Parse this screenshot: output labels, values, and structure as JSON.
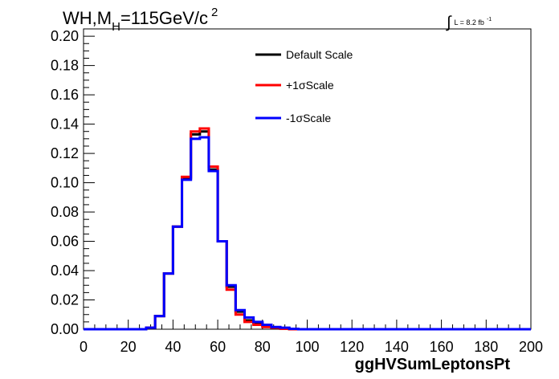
{
  "chart_data": {
    "type": "line",
    "title": {
      "main": "WH,M",
      "sub": "H",
      "rest": "=115GeV/c",
      "sup": "2"
    },
    "lumi": {
      "integral": "∫",
      "text": "L = 8.2 fb",
      "sup": "-1"
    },
    "xlabel": "ggHVSumLeptonsPt",
    "ylabel": "",
    "xlim": [
      0,
      200
    ],
    "ylim": [
      0,
      0.205
    ],
    "grid": false,
    "legend_position": "top-center",
    "xticks": [
      "0",
      "20",
      "40",
      "60",
      "80",
      "100",
      "120",
      "140",
      "160",
      "180",
      "200"
    ],
    "yticks": [
      "0.00",
      "0.02",
      "0.04",
      "0.06",
      "0.08",
      "0.10",
      "0.12",
      "0.14",
      "0.16",
      "0.18",
      "0.20"
    ],
    "bin_width": 4,
    "bin_edges_start": 0,
    "series": [
      {
        "name": "Default Scale",
        "color": "#000000",
        "values": [
          0,
          0,
          0,
          0,
          0,
          0,
          0,
          0.001,
          0.009,
          0.038,
          0.07,
          0.103,
          0.133,
          0.135,
          0.109,
          0.06,
          0.029,
          0.012,
          0.006,
          0.004,
          0.002,
          0.001,
          0.0005,
          0,
          0,
          0,
          0,
          0,
          0,
          0,
          0,
          0,
          0,
          0,
          0,
          0,
          0,
          0,
          0,
          0,
          0,
          0,
          0,
          0,
          0,
          0,
          0,
          0,
          0,
          0
        ]
      },
      {
        "name": "+1σScale",
        "color": "#ff0000",
        "values": [
          0,
          0,
          0,
          0,
          0,
          0,
          0,
          0.001,
          0.009,
          0.038,
          0.07,
          0.104,
          0.135,
          0.137,
          0.111,
          0.06,
          0.027,
          0.01,
          0.005,
          0.003,
          0.0015,
          0.001,
          0.0003,
          0,
          0,
          0,
          0,
          0,
          0,
          0,
          0,
          0,
          0,
          0,
          0,
          0,
          0,
          0,
          0,
          0,
          0,
          0,
          0,
          0,
          0,
          0,
          0,
          0,
          0,
          0
        ]
      },
      {
        "name": "-1σScale",
        "color": "#0000ff",
        "values": [
          0,
          0,
          0,
          0,
          0,
          0,
          0,
          0.001,
          0.009,
          0.038,
          0.07,
          0.102,
          0.13,
          0.131,
          0.108,
          0.06,
          0.03,
          0.013,
          0.008,
          0.005,
          0.003,
          0.0015,
          0.001,
          0.0003,
          0,
          0,
          0,
          0,
          0,
          0,
          0,
          0,
          0,
          0,
          0,
          0,
          0,
          0,
          0,
          0,
          0,
          0,
          0,
          0,
          0,
          0,
          0,
          0,
          0,
          0
        ]
      }
    ]
  }
}
